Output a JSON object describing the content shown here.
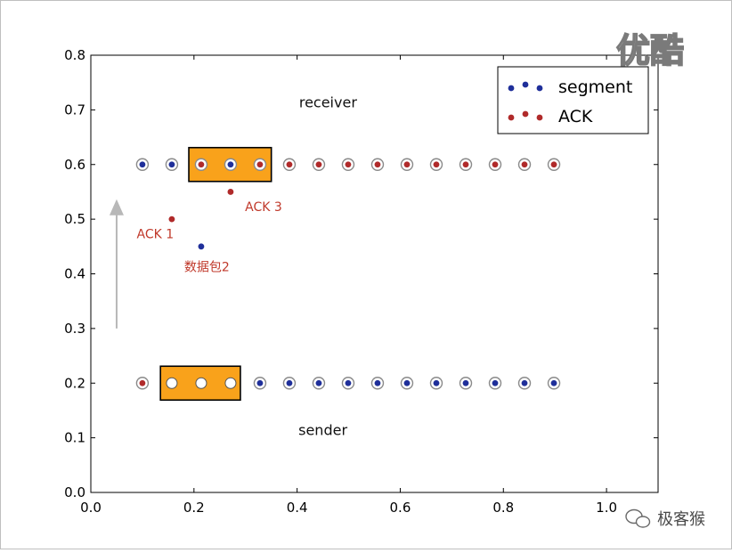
{
  "chart_data": {
    "type": "scatter",
    "title": "",
    "xlabel": "",
    "ylabel": "",
    "xlim": [
      0.0,
      1.0
    ],
    "ylim": [
      0.0,
      0.8
    ],
    "grid": false,
    "legend_position": "top-right",
    "x_ticks": [
      "0.0",
      "0.2",
      "0.4",
      "0.6",
      "0.8",
      "1.0"
    ],
    "y_ticks": [
      "0.0",
      "0.1",
      "0.2",
      "0.3",
      "0.4",
      "0.5",
      "0.6",
      "0.7",
      "0.8"
    ],
    "series": [
      {
        "name": "segment",
        "color": "#1f2f9a"
      },
      {
        "name": "ACK",
        "color": "#b02a2a"
      }
    ],
    "receiver_row": {
      "y": 0.6,
      "points": [
        {
          "x": 0.1,
          "kind": "segment"
        },
        {
          "x": 0.157,
          "kind": "segment"
        },
        {
          "x": 0.214,
          "kind": "ACK"
        },
        {
          "x": 0.271,
          "kind": "segment"
        },
        {
          "x": 0.328,
          "kind": "ACK"
        },
        {
          "x": 0.385,
          "kind": "ACK"
        },
        {
          "x": 0.442,
          "kind": "ACK"
        },
        {
          "x": 0.499,
          "kind": "ACK"
        },
        {
          "x": 0.556,
          "kind": "ACK"
        },
        {
          "x": 0.613,
          "kind": "ACK"
        },
        {
          "x": 0.67,
          "kind": "ACK"
        },
        {
          "x": 0.727,
          "kind": "ACK"
        },
        {
          "x": 0.784,
          "kind": "ACK"
        },
        {
          "x": 0.841,
          "kind": "ACK"
        },
        {
          "x": 0.898,
          "kind": "ACK"
        }
      ],
      "window": {
        "x_start": 0.19,
        "x_end": 0.35
      }
    },
    "sender_row": {
      "y": 0.2,
      "points": [
        {
          "x": 0.1,
          "kind": "ACK"
        },
        {
          "x": 0.157,
          "kind": "empty"
        },
        {
          "x": 0.214,
          "kind": "empty"
        },
        {
          "x": 0.271,
          "kind": "empty"
        },
        {
          "x": 0.328,
          "kind": "segment"
        },
        {
          "x": 0.385,
          "kind": "segment"
        },
        {
          "x": 0.442,
          "kind": "segment"
        },
        {
          "x": 0.499,
          "kind": "segment"
        },
        {
          "x": 0.556,
          "kind": "segment"
        },
        {
          "x": 0.613,
          "kind": "segment"
        },
        {
          "x": 0.67,
          "kind": "segment"
        },
        {
          "x": 0.727,
          "kind": "segment"
        },
        {
          "x": 0.784,
          "kind": "segment"
        },
        {
          "x": 0.841,
          "kind": "segment"
        },
        {
          "x": 0.898,
          "kind": "segment"
        }
      ],
      "window": {
        "x_start": 0.135,
        "x_end": 0.29
      }
    },
    "in_flight": [
      {
        "x": 0.157,
        "y": 0.5,
        "kind": "ACK"
      },
      {
        "x": 0.214,
        "y": 0.45,
        "kind": "segment"
      },
      {
        "x": 0.271,
        "y": 0.55,
        "kind": "ACK"
      }
    ],
    "annotations": [
      {
        "text": "receiver",
        "x": 0.46,
        "y": 0.705
      },
      {
        "text": "sender",
        "x": 0.45,
        "y": 0.105
      },
      {
        "text": "ACK 1",
        "x": 0.125,
        "y": 0.465
      },
      {
        "text": "数据包2",
        "x": 0.225,
        "y": 0.405
      },
      {
        "text": "ACK 3",
        "x": 0.335,
        "y": 0.515
      }
    ],
    "arrow": {
      "x": 0.05,
      "y_from": 0.3,
      "y_to": 0.53
    }
  },
  "colors": {
    "window_fill": "#f9a21b",
    "annotation_red": "#c0392b",
    "arrow_gray": "#b8b8b8"
  },
  "watermark_top": "优酷",
  "watermark_bottom": "极客猴"
}
